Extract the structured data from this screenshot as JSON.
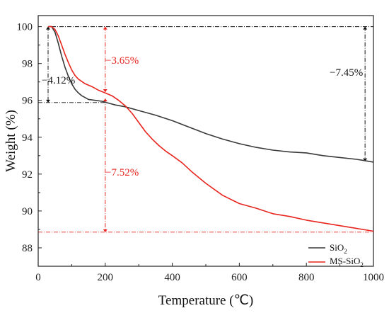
{
  "chart_data": {
    "type": "line",
    "xlabel": "Temperature (℃)",
    "ylabel": "Weight (%)",
    "xlim": [
      0,
      1000
    ],
    "ylim": [
      87,
      100.6
    ],
    "xticks": [
      0,
      200,
      400,
      600,
      800,
      1000
    ],
    "yticks": [
      88,
      90,
      92,
      94,
      96,
      98,
      100
    ],
    "grid": false,
    "legend_position": "bottom-right",
    "series": [
      {
        "name": "SiO2",
        "name_main": "SiO",
        "name_sub": "2",
        "color": "#3a3a3a",
        "x": [
          30,
          40,
          50,
          60,
          70,
          80,
          90,
          100,
          110,
          120,
          130,
          140,
          150,
          170,
          190,
          210,
          230,
          260,
          300,
          350,
          400,
          450,
          500,
          550,
          600,
          650,
          700,
          750,
          800,
          850,
          900,
          950,
          1000
        ],
        "y": [
          100,
          100,
          99.7,
          99.1,
          98.4,
          97.8,
          97.3,
          96.9,
          96.6,
          96.4,
          96.25,
          96.15,
          96.05,
          96.0,
          95.95,
          95.85,
          95.75,
          95.65,
          95.45,
          95.2,
          94.9,
          94.55,
          94.2,
          93.9,
          93.65,
          93.45,
          93.3,
          93.2,
          93.15,
          93.0,
          92.9,
          92.8,
          92.65
        ]
      },
      {
        "name": "MS-SiO2",
        "name_main": "MS-SiO",
        "name_sub": "2",
        "color": "#e8251f",
        "x": [
          30,
          40,
          50,
          60,
          70,
          80,
          90,
          100,
          110,
          120,
          140,
          160,
          180,
          200,
          220,
          240,
          260,
          280,
          300,
          320,
          340,
          360,
          380,
          400,
          430,
          460,
          500,
          550,
          600,
          650,
          700,
          750,
          800,
          850,
          900,
          950,
          1000
        ],
        "y": [
          100,
          100,
          99.85,
          99.5,
          99.0,
          98.5,
          98.05,
          97.65,
          97.35,
          97.15,
          96.9,
          96.75,
          96.55,
          96.4,
          96.25,
          96.0,
          95.7,
          95.3,
          94.8,
          94.3,
          93.9,
          93.55,
          93.25,
          93.0,
          92.6,
          92.1,
          91.5,
          90.85,
          90.4,
          90.15,
          89.85,
          89.7,
          89.5,
          89.35,
          89.2,
          89.05,
          88.9
        ]
      }
    ],
    "annotations": [
      {
        "text": "−4.12%",
        "color": "#111111"
      },
      {
        "text": "−3.65%",
        "color": "#e8251f"
      },
      {
        "text": "−7.45%",
        "color": "#111111"
      },
      {
        "text": "−7.52%",
        "color": "#e8251f"
      }
    ],
    "reference_levels": {
      "top": 100,
      "sio2_left": 95.88,
      "ms_bottom": 88.85
    }
  }
}
